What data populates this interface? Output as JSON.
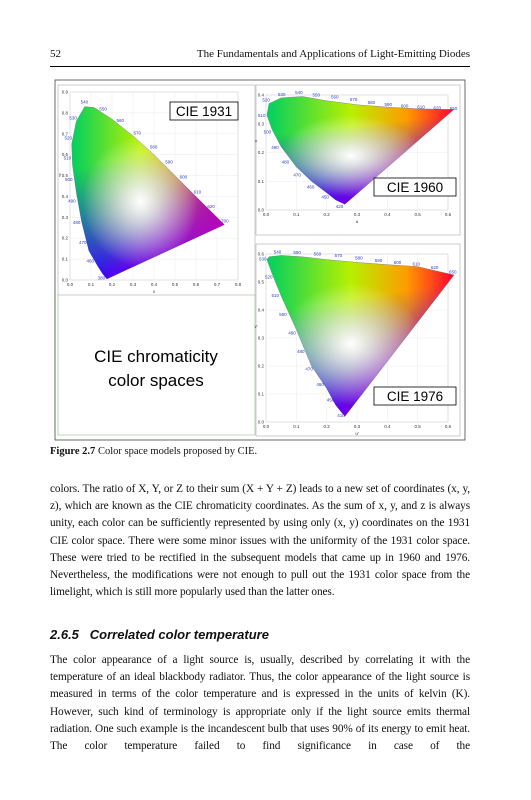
{
  "header": {
    "page_number": "52",
    "running_title": "The Fundamentals and Applications of Light-Emitting Diodes"
  },
  "figure": {
    "panels": [
      {
        "label": "CIE 1931",
        "axis_x": "x",
        "axis_y": "y",
        "xticks": [
          "0.0",
          "0.1",
          "0.2",
          "0.3",
          "0.4",
          "0.5",
          "0.6",
          "0.7",
          "0.8"
        ],
        "yticks": [
          "0.0",
          "0.1",
          "0.2",
          "0.3",
          "0.4",
          "0.5",
          "0.6",
          "0.7",
          "0.8",
          "0.9"
        ],
        "wavelengths": [
          "380",
          "460",
          "470",
          "480",
          "490",
          "500",
          "510",
          "520",
          "530",
          "540",
          "550",
          "560",
          "570",
          "580",
          "590",
          "600",
          "610",
          "620",
          "700"
        ]
      },
      {
        "label": "CIE 1960",
        "axis_x": "u",
        "axis_y": "v",
        "xticks": [
          "0.0",
          "0.1",
          "0.2",
          "0.3",
          "0.4",
          "0.5",
          "0.6"
        ],
        "yticks": [
          "0.0",
          "0.1",
          "0.2",
          "0.3",
          "0.4"
        ],
        "wavelengths": [
          "420",
          "450",
          "460",
          "470",
          "480",
          "490",
          "500",
          "510",
          "520",
          "530",
          "540",
          "550",
          "560",
          "570",
          "580",
          "590",
          "600",
          "610",
          "620",
          "650"
        ]
      },
      {
        "label": "CIE 1976",
        "axis_x": "u'",
        "axis_y": "v'",
        "xticks": [
          "0.0",
          "0.1",
          "0.2",
          "0.3",
          "0.4",
          "0.5",
          "0.6"
        ],
        "yticks": [
          "0.0",
          "0.1",
          "0.2",
          "0.3",
          "0.4",
          "0.5",
          "0.6"
        ],
        "wavelengths": [
          "410",
          "450",
          "460",
          "470",
          "480",
          "490",
          "500",
          "510",
          "520",
          "530",
          "540",
          "550",
          "560",
          "570",
          "580",
          "590",
          "600",
          "610",
          "620",
          "650"
        ]
      }
    ],
    "text_box": [
      "CIE chromaticity",
      "color spaces"
    ],
    "caption": {
      "number": "Figure 2.7",
      "text": "Color space models proposed by CIE."
    }
  },
  "body": {
    "paragraph_1": "colors. The ratio of X, Y, or Z to their sum (X + Y + Z) leads to a new set of coordinates (x, y, z), which are known as the CIE chromaticity coordinates. As the sum of x, y, and z is always unity, each color can be sufficiently represented by using only (x, y) coordinates on the 1931 CIE color space. There were some minor issues with the uniformity of the 1931 color space. These were tried to be rectified in the subsequent models that came up in 1960 and 1976. Nevertheless, the modifications were not enough to pull out the 1931 color space from the limelight, which is still more popularly used than the latter ones.",
    "section": {
      "number": "2.6.5",
      "title": "Correlated color temperature"
    },
    "paragraph_2": "The color appearance of a light source is, usually, described by correlating it with the temperature of an ideal blackbody radiator. Thus, the color appearance of the light source is measured in terms of the color temperature and is expressed in the units of kelvin (K). However, such kind of terminology is appropriate only if the light source emits thermal radiation. One such example is the incandescent bulb that uses 90% of its energy to emit heat. The color temperature failed to find significance in case of the"
  }
}
